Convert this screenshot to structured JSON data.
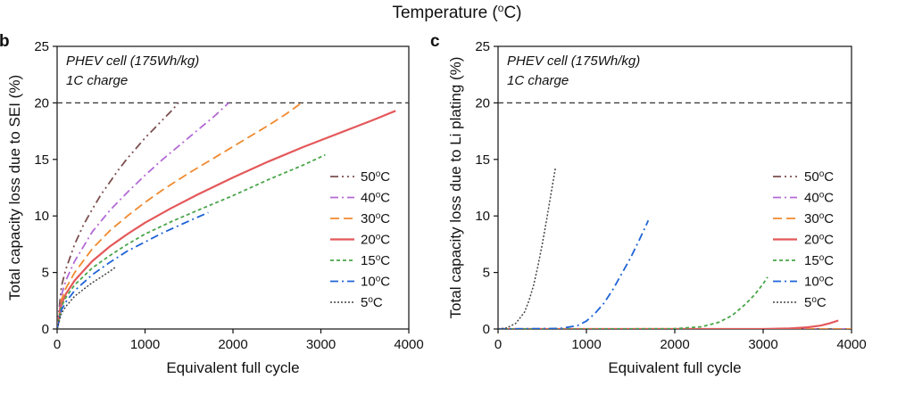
{
  "figure_title": "Temperature (°C)",
  "figure_title_base": "Temperature (",
  "figure_title_sup": "o",
  "figure_title_end": "C)",
  "chart_data": [
    {
      "type": "line",
      "panel": "b",
      "annotation": [
        "PHEV cell (175Wh/kg)",
        "1C charge"
      ],
      "xlabel": "Equivalent full cycle",
      "ylabel": "Total capacity loss due to SEI (%)",
      "xlim": [
        0,
        4000
      ],
      "ylim": [
        0,
        25
      ],
      "xticks": [
        0,
        1000,
        2000,
        3000,
        4000
      ],
      "yticks": [
        0,
        5,
        10,
        15,
        20,
        25
      ],
      "reference_line": {
        "y": 20,
        "style": "dashed",
        "color": "#333333"
      },
      "legend_position": "right",
      "series": [
        {
          "name": "50°C",
          "label_num": "50",
          "color": "#7b4f4f",
          "dash": "9,4,2,4,2,4",
          "width": 1.8,
          "x": [
            0,
            50,
            100,
            200,
            300,
            400,
            500,
            600,
            700,
            800,
            900,
            1000,
            1100,
            1200,
            1300,
            1380
          ],
          "y": [
            0,
            3.8,
            5.3,
            7.5,
            9.2,
            10.6,
            11.9,
            13.0,
            14.1,
            15.1,
            16.0,
            16.9,
            17.7,
            18.5,
            19.3,
            20.0
          ]
        },
        {
          "name": "40°C",
          "label_num": "40",
          "color": "#b36ad6",
          "dash": "9,4,2,4",
          "width": 1.8,
          "x": [
            0,
            50,
            100,
            200,
            400,
            600,
            800,
            1000,
            1200,
            1400,
            1600,
            1800,
            1950
          ],
          "y": [
            0,
            3.0,
            4.3,
            6.0,
            8.6,
            10.5,
            12.1,
            13.6,
            15.0,
            16.3,
            17.6,
            18.9,
            20.0
          ]
        },
        {
          "name": "30°C",
          "label_num": "30",
          "color": "#f08a2f",
          "dash": "10,5",
          "width": 1.8,
          "x": [
            0,
            50,
            100,
            200,
            400,
            600,
            800,
            1000,
            1200,
            1500,
            1800,
            2100,
            2400,
            2600,
            2780
          ],
          "y": [
            0,
            2.6,
            3.6,
            5.0,
            7.1,
            8.7,
            10.0,
            11.2,
            12.3,
            13.8,
            15.2,
            16.6,
            18.0,
            19.0,
            20.0
          ]
        },
        {
          "name": "20°C",
          "label_num": "20",
          "color": "#e4585a",
          "dash": "",
          "width": 2.2,
          "x": [
            0,
            50,
            100,
            200,
            400,
            600,
            800,
            1000,
            1300,
            1600,
            2000,
            2400,
            2800,
            3200,
            3600,
            3850
          ],
          "y": [
            0,
            2.2,
            3.1,
            4.3,
            6.0,
            7.3,
            8.4,
            9.4,
            10.7,
            11.9,
            13.4,
            14.8,
            16.1,
            17.3,
            18.5,
            19.3
          ]
        },
        {
          "name": "15°C",
          "label_num": "15",
          "color": "#4aa54a",
          "dash": "4,3",
          "width": 1.8,
          "x": [
            0,
            50,
            100,
            200,
            400,
            600,
            800,
            1000,
            1300,
            1600,
            2000,
            2400,
            2800,
            3050
          ],
          "y": [
            0,
            2.0,
            2.8,
            3.9,
            5.4,
            6.5,
            7.5,
            8.4,
            9.5,
            10.5,
            11.8,
            13.2,
            14.5,
            15.4
          ]
        },
        {
          "name": "10°C",
          "label_num": "10",
          "color": "#1f64d6",
          "dash": "9,4,2,4",
          "width": 1.8,
          "x": [
            0,
            50,
            100,
            200,
            400,
            600,
            800,
            1000,
            1200,
            1400,
            1600,
            1720
          ],
          "y": [
            0,
            1.7,
            2.4,
            3.4,
            4.8,
            5.9,
            6.9,
            7.7,
            8.5,
            9.2,
            9.9,
            10.3
          ]
        },
        {
          "name": "5°C",
          "label_num": "5",
          "color": "#444444",
          "dash": "2,2",
          "width": 1.5,
          "x": [
            0,
            50,
            100,
            200,
            300,
            400,
            500,
            600,
            670
          ],
          "y": [
            0,
            1.4,
            2.0,
            2.9,
            3.5,
            4.1,
            4.6,
            5.1,
            5.5
          ]
        }
      ]
    },
    {
      "type": "line",
      "panel": "c",
      "annotation": [
        "PHEV cell (175Wh/kg)",
        "1C charge"
      ],
      "xlabel": "Equivalent full cycle",
      "ylabel": "Total capacity loss due to Li plating (%)",
      "xlim": [
        0,
        4000
      ],
      "ylim": [
        0,
        25
      ],
      "xticks": [
        0,
        1000,
        2000,
        3000,
        4000
      ],
      "yticks": [
        0,
        5,
        10,
        15,
        20,
        25
      ],
      "reference_line": {
        "y": 20,
        "style": "dashed",
        "color": "#333333"
      },
      "legend_position": "right",
      "series": [
        {
          "name": "50°C",
          "label_num": "50",
          "color": "#7b4f4f",
          "dash": "9,4,2,4,2,4",
          "width": 1.8,
          "x": [
            0,
            4000
          ],
          "y": [
            0,
            0
          ]
        },
        {
          "name": "40°C",
          "label_num": "40",
          "color": "#b36ad6",
          "dash": "9,4,2,4",
          "width": 1.8,
          "x": [
            0,
            4000
          ],
          "y": [
            0,
            0
          ]
        },
        {
          "name": "30°C",
          "label_num": "30",
          "color": "#f08a2f",
          "dash": "10,5",
          "width": 1.8,
          "x": [
            0,
            4000
          ],
          "y": [
            0,
            0
          ]
        },
        {
          "name": "20°C",
          "label_num": "20",
          "color": "#e4585a",
          "dash": "",
          "width": 2.2,
          "x": [
            0,
            1000,
            2000,
            3000,
            3300,
            3500,
            3650,
            3750,
            3850
          ],
          "y": [
            0,
            0,
            0,
            0,
            0.05,
            0.15,
            0.3,
            0.5,
            0.75
          ]
        },
        {
          "name": "15°C",
          "label_num": "15",
          "color": "#4aa54a",
          "dash": "4,3",
          "width": 1.8,
          "x": [
            0,
            1000,
            2000,
            2300,
            2500,
            2650,
            2800,
            2900,
            3000,
            3050
          ],
          "y": [
            0,
            0,
            0.02,
            0.2,
            0.6,
            1.2,
            2.2,
            3.0,
            4.0,
            4.6
          ]
        },
        {
          "name": "10°C",
          "label_num": "10",
          "color": "#1f64d6",
          "dash": "9,4,2,4",
          "width": 1.8,
          "x": [
            0,
            700,
            900,
            1000,
            1100,
            1200,
            1300,
            1400,
            1500,
            1600,
            1700
          ],
          "y": [
            0,
            0.05,
            0.3,
            0.7,
            1.4,
            2.3,
            3.5,
            4.9,
            6.3,
            7.9,
            9.6
          ]
        },
        {
          "name": "5°C",
          "label_num": "5",
          "color": "#444444",
          "dash": "2,2",
          "width": 1.5,
          "x": [
            0,
            100,
            200,
            300,
            350,
            400,
            450,
            500,
            550,
            600,
            650
          ],
          "y": [
            0,
            0.1,
            0.5,
            1.5,
            2.5,
            3.8,
            5.5,
            7.5,
            9.7,
            12.0,
            14.3
          ]
        }
      ]
    }
  ]
}
